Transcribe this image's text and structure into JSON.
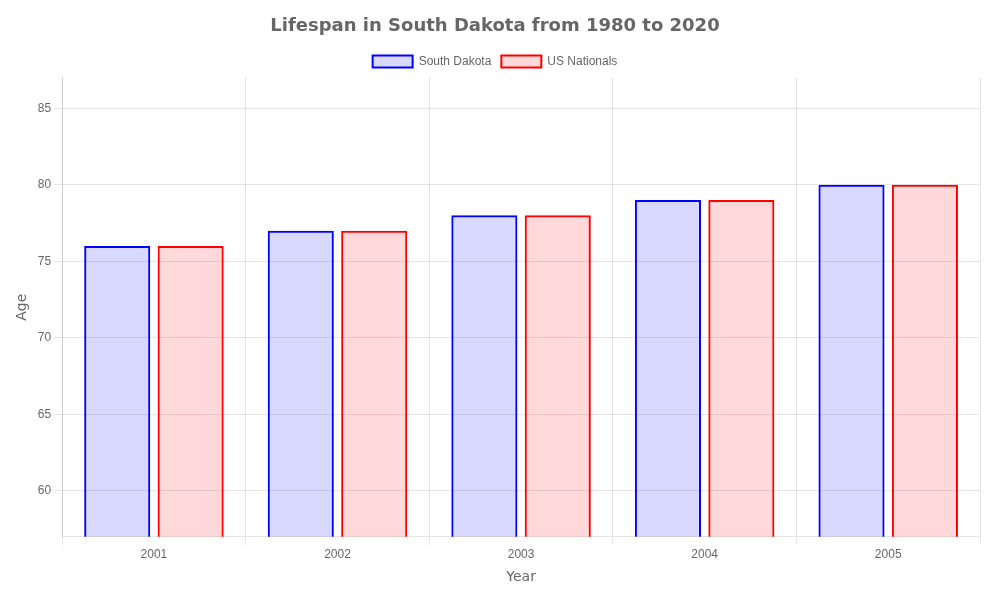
{
  "chart_data": {
    "type": "bar",
    "title": "Lifespan in South Dakota from 1980 to 2020",
    "x_label": "Year",
    "y_label": "Age",
    "categories": [
      "2001",
      "2002",
      "2003",
      "2004",
      "2005"
    ],
    "series": [
      {
        "name": "South Dakota",
        "color": "#0000ff",
        "values": [
          76,
          77,
          78,
          79,
          80
        ]
      },
      {
        "name": "US Nationals",
        "color": "#ff0000",
        "values": [
          76,
          77,
          78,
          79,
          80
        ]
      }
    ],
    "ylim": [
      57,
      87
    ],
    "yticks": [
      60,
      65,
      70,
      75,
      80,
      85
    ],
    "grid": true,
    "legend": "top"
  }
}
